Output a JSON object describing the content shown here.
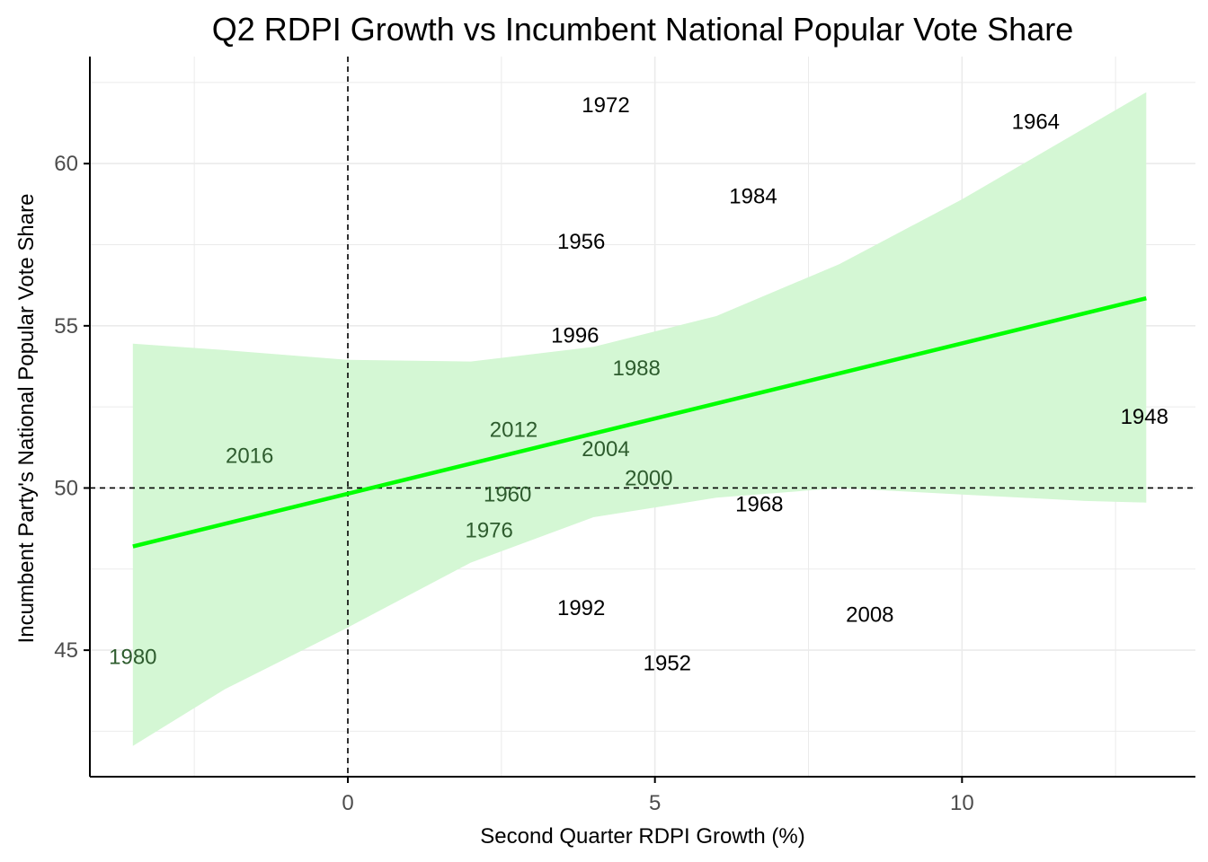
{
  "chart_data": {
    "type": "scatter",
    "title": "Q2 RDPI Growth vs Incumbent National Popular Vote Share",
    "xlabel": "Second Quarter RDPI Growth (%)",
    "ylabel": "Incumbent Party's National Popular Vote Share",
    "xlim": [
      -4.2,
      13.8
    ],
    "ylim": [
      41.1,
      63.3
    ],
    "x_ticks": [
      {
        "value": 0,
        "label": "0"
      },
      {
        "value": 5,
        "label": "5"
      },
      {
        "value": 10,
        "label": "10"
      }
    ],
    "y_ticks": [
      {
        "value": 45,
        "label": "45"
      },
      {
        "value": 50,
        "label": "50"
      },
      {
        "value": 55,
        "label": "55"
      },
      {
        "value": 60,
        "label": "60"
      }
    ],
    "x_minor_ticks": [
      -2.5,
      2.5,
      7.5,
      12.5
    ],
    "y_minor_ticks": [
      42.5,
      47.5,
      52.5,
      57.5,
      62.5
    ],
    "grid": true,
    "reference_lines": {
      "x": 0,
      "y": 50,
      "style": "dashed"
    },
    "colors": {
      "fit_line": "#00ff00",
      "confidence_band": "#d4f7d4",
      "label_default": "#000000",
      "label_in_band": "#2e5c2e",
      "grid": "#ebebeb",
      "axis": "#000000"
    },
    "points": [
      {
        "label": "1948",
        "x": 12.97,
        "y": 52.2,
        "in_band": false
      },
      {
        "label": "1952",
        "x": 5.2,
        "y": 44.6,
        "in_band": false
      },
      {
        "label": "1956",
        "x": 3.8,
        "y": 57.6,
        "in_band": false
      },
      {
        "label": "1960",
        "x": 2.6,
        "y": 49.8,
        "in_band": true
      },
      {
        "label": "1964",
        "x": 11.2,
        "y": 61.3,
        "in_band": false
      },
      {
        "label": "1968",
        "x": 6.7,
        "y": 49.5,
        "in_band": false
      },
      {
        "label": "1972",
        "x": 4.2,
        "y": 61.8,
        "in_band": false
      },
      {
        "label": "1976",
        "x": 2.3,
        "y": 48.7,
        "in_band": true
      },
      {
        "label": "1980",
        "x": -3.5,
        "y": 44.8,
        "in_band": true
      },
      {
        "label": "1984",
        "x": 6.6,
        "y": 59.0,
        "in_band": false
      },
      {
        "label": "1988",
        "x": 4.7,
        "y": 53.7,
        "in_band": true
      },
      {
        "label": "1992",
        "x": 3.8,
        "y": 46.3,
        "in_band": false
      },
      {
        "label": "1996",
        "x": 3.7,
        "y": 54.7,
        "in_band": false
      },
      {
        "label": "2000",
        "x": 4.9,
        "y": 50.3,
        "in_band": true
      },
      {
        "label": "2004",
        "x": 4.2,
        "y": 51.2,
        "in_band": true
      },
      {
        "label": "2008",
        "x": 8.5,
        "y": 46.1,
        "in_band": false
      },
      {
        "label": "2012",
        "x": 2.7,
        "y": 51.8,
        "in_band": true
      },
      {
        "label": "2016",
        "x": -1.6,
        "y": 51.0,
        "in_band": true
      }
    ],
    "fit": {
      "x": [
        -3.5,
        13.0
      ],
      "y": [
        48.2,
        55.85
      ]
    },
    "confidence_band": {
      "x": [
        -3.5,
        -2.0,
        0.0,
        2.0,
        4.0,
        6.0,
        8.0,
        10.0,
        12.0,
        13.0
      ],
      "upper": [
        54.45,
        54.25,
        53.95,
        53.9,
        54.35,
        55.3,
        56.9,
        58.9,
        61.1,
        62.2
      ],
      "lower": [
        42.05,
        43.8,
        45.7,
        47.7,
        49.1,
        49.7,
        50.0,
        49.8,
        49.6,
        49.55
      ]
    }
  }
}
